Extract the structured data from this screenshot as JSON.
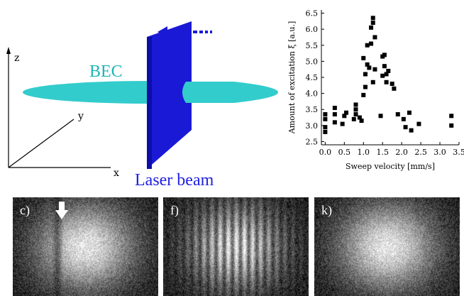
{
  "schematic": {
    "axis_z": "z",
    "axis_y": "y",
    "axis_x": "x",
    "bec_label": "BEC",
    "laser_label": "Laser beam",
    "colors": {
      "bec": "#33cccc",
      "beam": "#1a1ad6",
      "label_bec": "#1fb5b5",
      "label_laser": "#1f1fe0"
    }
  },
  "chart_data": {
    "type": "scatter",
    "title": "",
    "xlabel": "Sweep velocity [mm/s]",
    "ylabel": "Amount of excitation ξ [a.u.]",
    "xlim": [
      -0.1,
      3.5
    ],
    "ylim": [
      2.4,
      6.6
    ],
    "xticks": [
      "0.0",
      "0.5",
      "1.0",
      "1.5",
      "2.0",
      "2.5",
      "3.0",
      "3.5"
    ],
    "yticks": [
      "2.5",
      "3.0",
      "3.5",
      "4.0",
      "4.5",
      "5.0",
      "5.5",
      "6.0",
      "6.5"
    ],
    "grid": false,
    "marker": "square",
    "color": "#000000",
    "points": [
      [
        0.0,
        2.8
      ],
      [
        0.0,
        2.95
      ],
      [
        0.0,
        3.2
      ],
      [
        0.0,
        3.35
      ],
      [
        0.25,
        3.1
      ],
      [
        0.25,
        3.35
      ],
      [
        0.25,
        3.55
      ],
      [
        0.45,
        3.05
      ],
      [
        0.5,
        3.3
      ],
      [
        0.55,
        3.4
      ],
      [
        0.75,
        3.2
      ],
      [
        0.8,
        3.35
      ],
      [
        0.8,
        3.5
      ],
      [
        0.8,
        3.65
      ],
      [
        0.9,
        3.25
      ],
      [
        0.95,
        3.15
      ],
      [
        1.0,
        3.95
      ],
      [
        1.0,
        5.1
      ],
      [
        1.05,
        4.2
      ],
      [
        1.05,
        4.6
      ],
      [
        1.1,
        4.9
      ],
      [
        1.1,
        5.5
      ],
      [
        1.15,
        4.8
      ],
      [
        1.2,
        5.55
      ],
      [
        1.2,
        6.05
      ],
      [
        1.25,
        6.35
      ],
      [
        1.25,
        6.2
      ],
      [
        1.25,
        4.35
      ],
      [
        1.3,
        4.75
      ],
      [
        1.3,
        5.75
      ],
      [
        1.45,
        3.3
      ],
      [
        1.5,
        4.55
      ],
      [
        1.5,
        5.15
      ],
      [
        1.55,
        4.85
      ],
      [
        1.55,
        5.2
      ],
      [
        1.6,
        4.6
      ],
      [
        1.6,
        4.35
      ],
      [
        1.65,
        4.7
      ],
      [
        1.75,
        4.3
      ],
      [
        1.8,
        4.15
      ],
      [
        1.9,
        3.35
      ],
      [
        2.05,
        3.2
      ],
      [
        2.1,
        2.95
      ],
      [
        2.2,
        3.4
      ],
      [
        2.25,
        2.85
      ],
      [
        2.45,
        3.05
      ],
      [
        3.3,
        3.0
      ],
      [
        3.3,
        3.3
      ]
    ]
  },
  "panels": [
    {
      "label": "c)"
    },
    {
      "label": "f)"
    },
    {
      "label": "k)"
    }
  ]
}
